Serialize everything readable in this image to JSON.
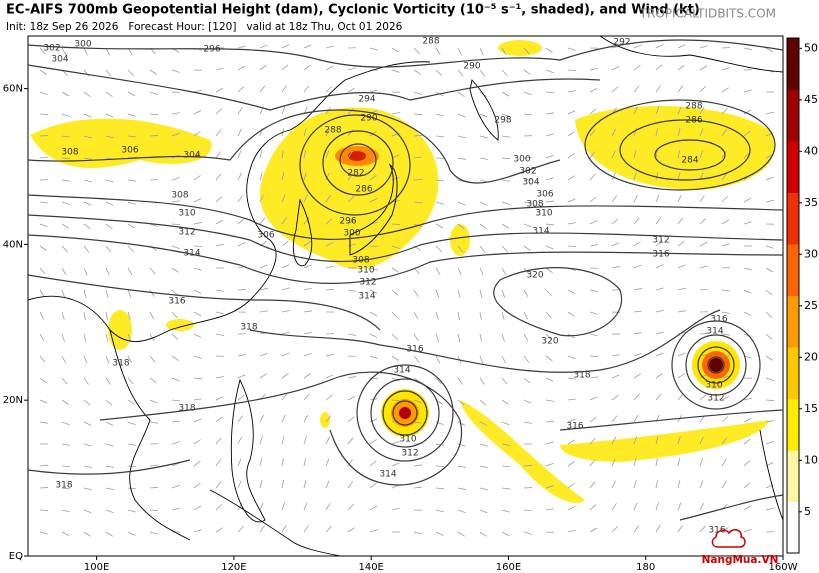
{
  "header": {
    "title": "EC-AIFS 700mb Geopotential Height (dam), Cyclonic Vorticity (10⁻⁵ s⁻¹, shaded), and Wind (kt)",
    "subtitle": "Init: 18z Sep 26 2026   Forecast Hour: [120]   valid at 18z Thu, Oct 01 2026",
    "credit": "TROPICALTIDBITS.COM"
  },
  "map": {
    "lonlim": [
      90,
      200
    ],
    "latlim": [
      0,
      66.75
    ],
    "lonticks": [
      {
        "value": 100,
        "label": "100E"
      },
      {
        "value": 120,
        "label": "120E"
      },
      {
        "value": 140,
        "label": "140E"
      },
      {
        "value": 160,
        "label": "160E"
      },
      180,
      {
        "value": 200,
        "label": "160W"
      }
    ],
    "latticks": [
      {
        "value": 60,
        "label": "60N"
      },
      {
        "value": 40,
        "label": "40N"
      },
      {
        "value": 20,
        "label": "20N"
      },
      {
        "value": 0,
        "label": "EQ"
      }
    ],
    "contour_labels": [
      "302",
      "300",
      "304",
      "296",
      "288",
      "292",
      "290",
      "294",
      "290",
      "288",
      "282",
      "286",
      "296",
      "300",
      "306",
      "298",
      "300",
      "302",
      "304",
      "306",
      "308",
      "310",
      "314",
      "312",
      "316",
      "320",
      "320",
      "318",
      "316",
      "316",
      "314",
      "310",
      "312",
      "314",
      "306",
      "304",
      "308",
      "310",
      "312",
      "314",
      "316",
      "318",
      "318",
      "318",
      "318",
      "308",
      "288",
      "286",
      "284",
      "314",
      "316",
      "310",
      "312",
      "316",
      "314",
      "312",
      "310",
      "308"
    ]
  },
  "colorbar": {
    "lim": [
      1,
      51
    ],
    "ticks": [
      5,
      10,
      15,
      20,
      25,
      30,
      35,
      40,
      45,
      50
    ],
    "colors": [
      "#ffffff",
      "#fff7a0",
      "#ffea00",
      "#ffc800",
      "#ff9a00",
      "#ff6400",
      "#f03000",
      "#d00000",
      "#a00000",
      "#600000"
    ]
  },
  "watermark": "NangMua.VN"
}
